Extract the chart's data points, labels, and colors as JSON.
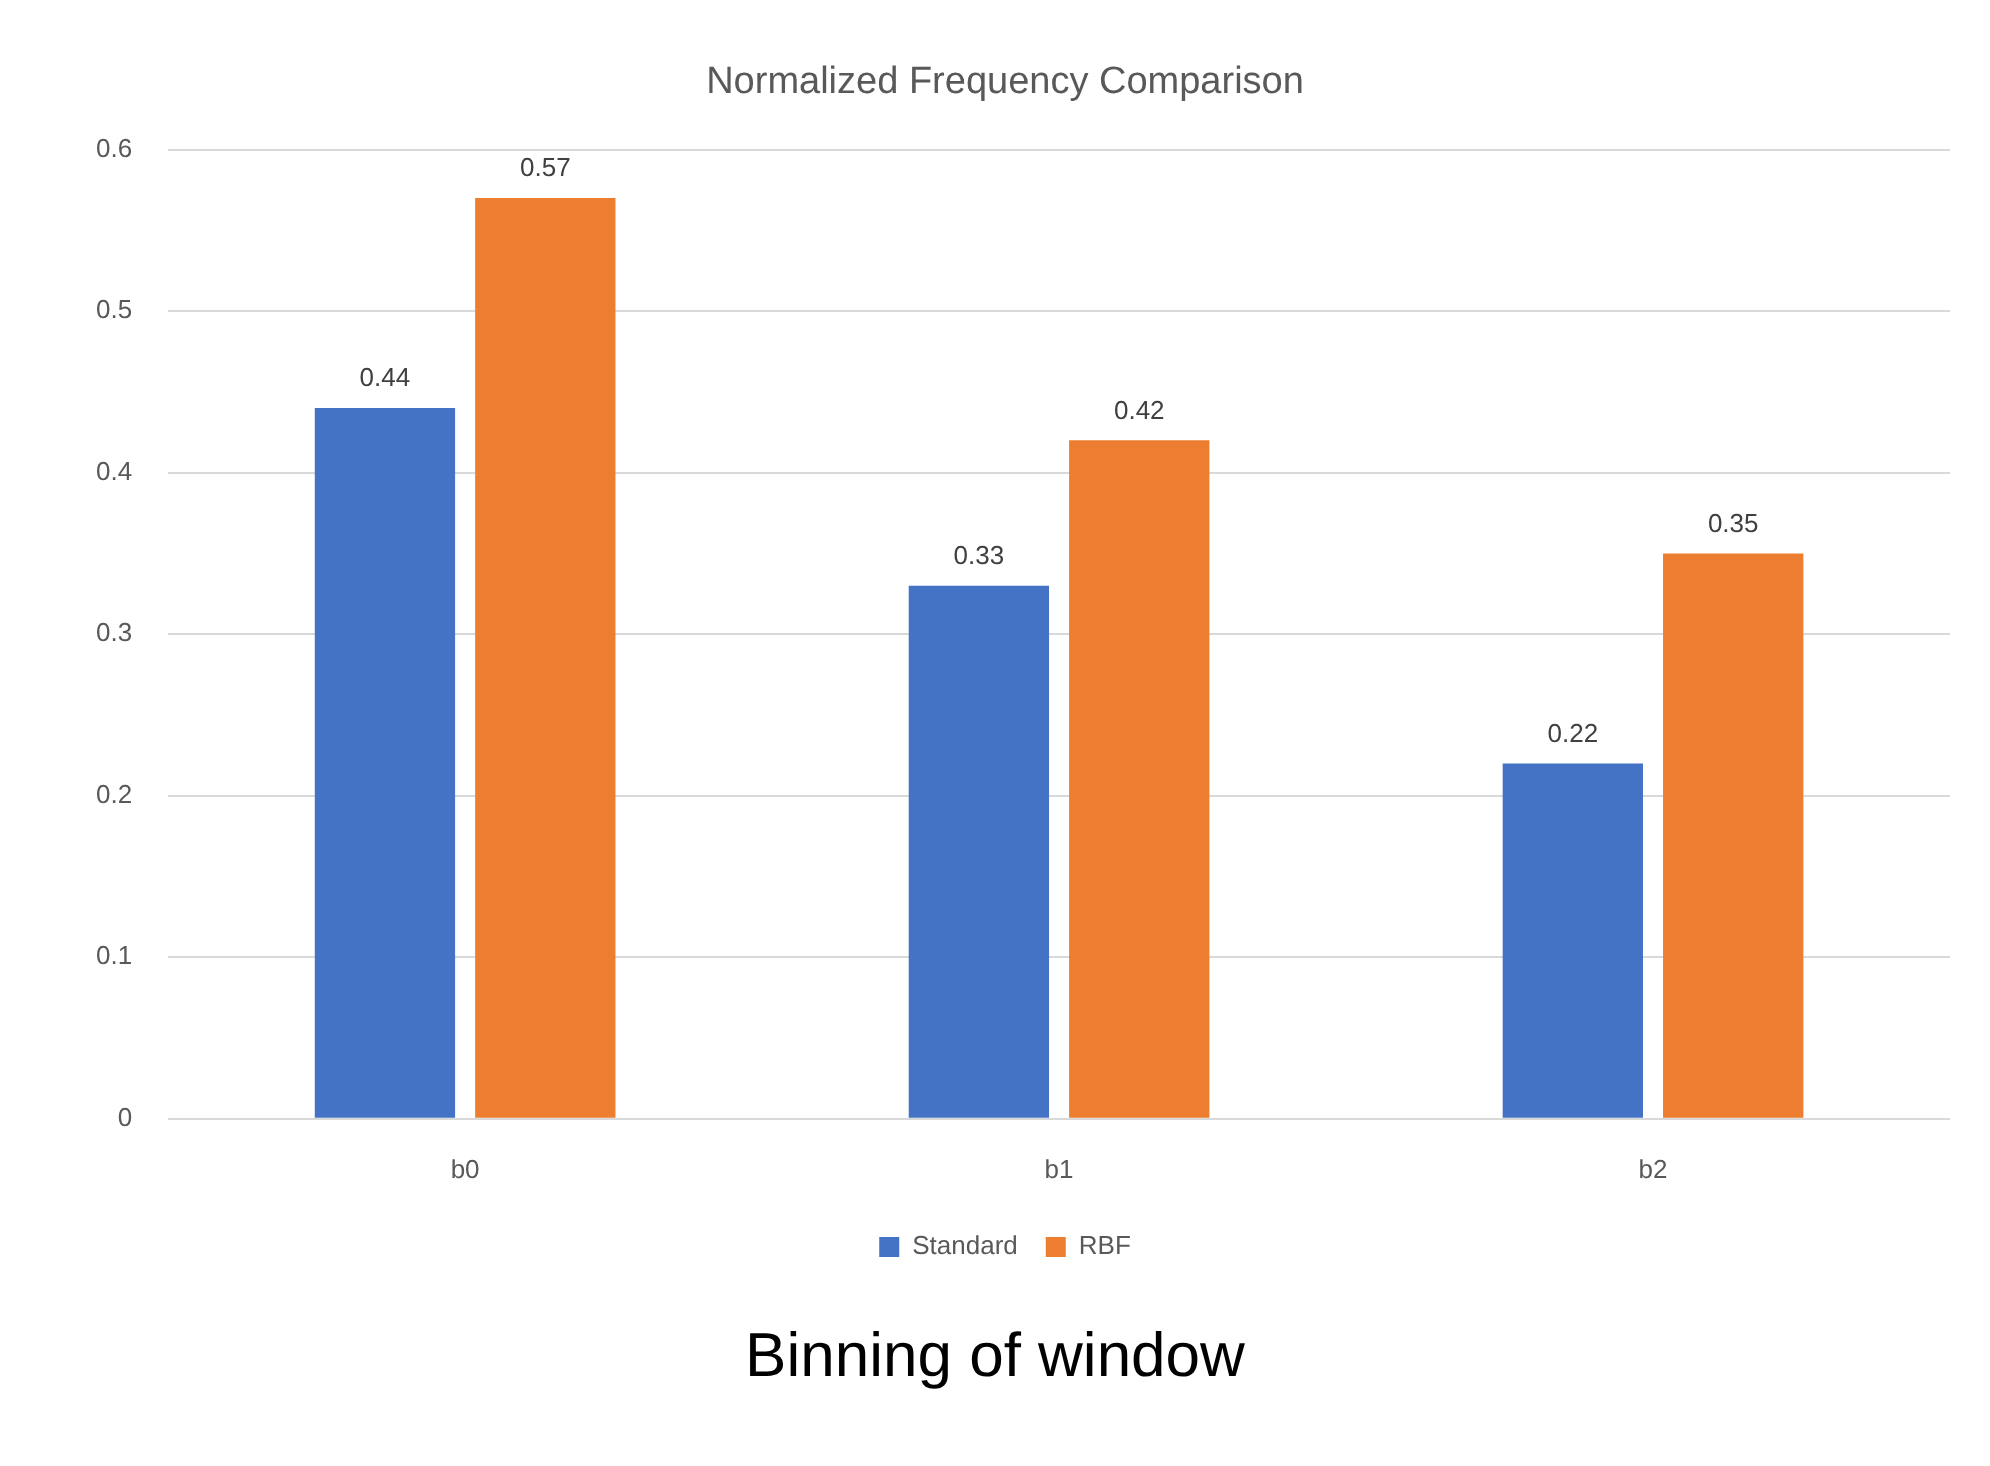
{
  "chart_data": {
    "type": "bar",
    "title": "Normalized Frequency Comparison",
    "xlabel": "Binning of window",
    "categories": [
      "b0",
      "b1",
      "b2"
    ],
    "series": [
      {
        "name": "Standard",
        "color": "#4472c4",
        "values": [
          0.44,
          0.33,
          0.22
        ]
      },
      {
        "name": "RBF",
        "color": "#ed7d31",
        "values": [
          0.57,
          0.42,
          0.35
        ]
      }
    ],
    "ylim": [
      0,
      0.6
    ],
    "yticks": [
      0,
      0.1,
      0.2,
      0.3,
      0.4,
      0.5,
      0.6
    ],
    "grid": "y",
    "legend": "bottom",
    "data_labels": true
  }
}
